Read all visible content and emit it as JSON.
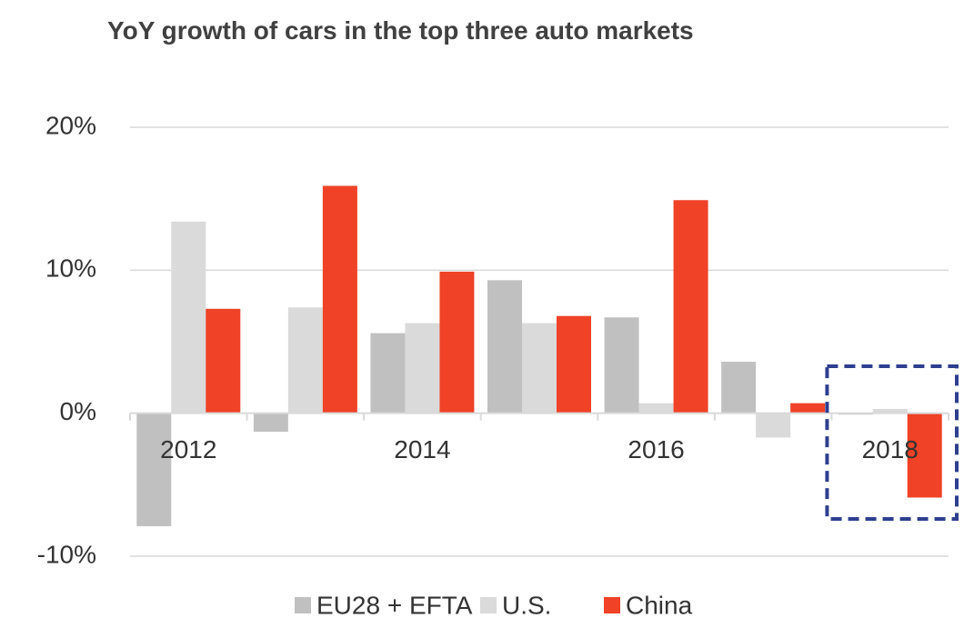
{
  "chart_data": {
    "type": "bar",
    "title": "YoY growth of cars in the top three auto markets",
    "categories": [
      "2012",
      null,
      "2014",
      null,
      "2016",
      null,
      "2018"
    ],
    "series": [
      {
        "name": "EU28 + EFTA",
        "color": "#c0c0c0",
        "values": [
          -7.9,
          -1.3,
          5.6,
          9.3,
          6.7,
          3.6,
          -0.1
        ]
      },
      {
        "name": "U.S.",
        "color": "#dadada",
        "values": [
          13.4,
          7.4,
          6.3,
          6.3,
          0.7,
          -1.7,
          0.3
        ]
      },
      {
        "name": "China",
        "color": "#ef4226",
        "values": [
          7.3,
          15.9,
          9.9,
          6.8,
          14.9,
          0.7,
          -5.9
        ]
      }
    ],
    "ylim": [
      -10,
      20
    ],
    "yticks": [
      {
        "value": -10,
        "label": "-10%"
      },
      {
        "value": 0,
        "label": "0%"
      },
      {
        "value": 10,
        "label": "10%"
      },
      {
        "value": 20,
        "label": "20%"
      }
    ],
    "grid": true,
    "legend": "bottom"
  }
}
